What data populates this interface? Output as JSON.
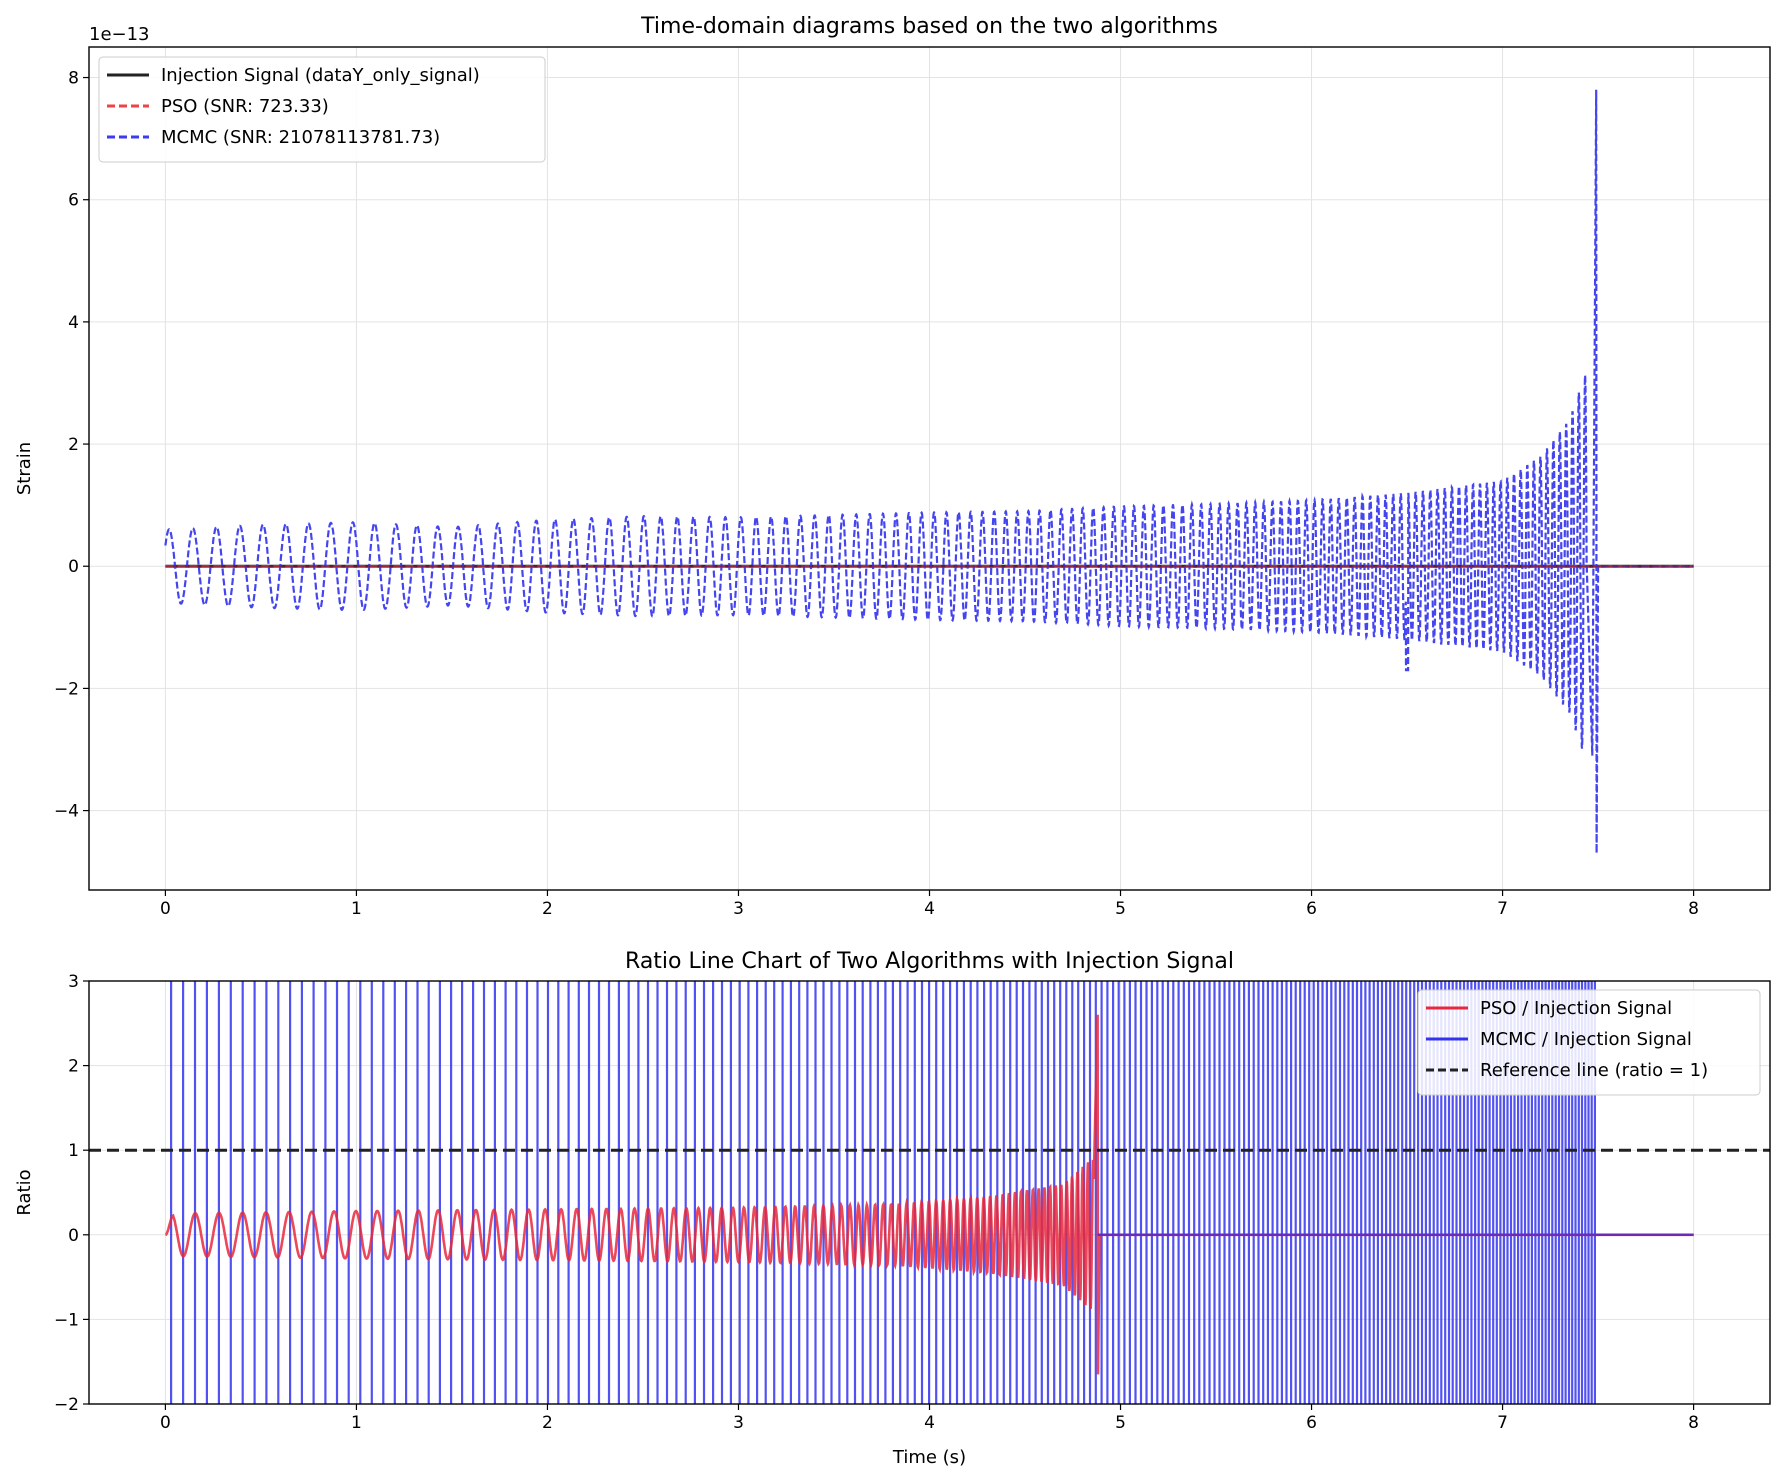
{
  "chart_data": [
    {
      "type": "line",
      "title": "Time-domain diagrams based on the two algorithms",
      "xlabel": "",
      "ylabel": "Strain",
      "offset_label": "1e−13",
      "xlim": [
        -0.4,
        8.4
      ],
      "ylim": [
        -5.3,
        8.5
      ],
      "x_ticks": [
        0,
        1,
        2,
        3,
        4,
        5,
        6,
        7,
        8
      ],
      "x_tick_labels": [
        "0",
        "1",
        "2",
        "3",
        "4",
        "5",
        "6",
        "7",
        "8"
      ],
      "y_ticks": [
        -4,
        -2,
        0,
        2,
        4,
        6,
        8
      ],
      "y_tick_labels": [
        "−4",
        "−2",
        "0",
        "2",
        "4",
        "6",
        "8"
      ],
      "grid": true,
      "legend_position": "upper-left",
      "series": [
        {
          "name": "Injection Signal (dataY_only_signal)",
          "color": "#222222",
          "style": "solid",
          "description": "flat at ~0 across 0–8 s",
          "points": [
            [
              0,
              0
            ],
            [
              8,
              0
            ]
          ]
        },
        {
          "name": "PSO (SNR: 723.33)",
          "color": "#ef4444",
          "style": "dashed",
          "description": "near zero across 0–8 s",
          "points": [
            [
              0,
              0
            ],
            [
              8,
              0
            ]
          ]
        },
        {
          "name": "MCMC (SNR: 21078113781.73)",
          "color": "#3b3bef",
          "style": "dashed",
          "description": "oscillating chirp, frequency rising from ~8 Hz to ~30 Hz, amplitude growing toward merger near t≈7.5 s, then zero",
          "envelope": [
            {
              "t": 0.0,
              "amp": 0.6
            },
            {
              "t": 0.5,
              "amp": 0.68
            },
            {
              "t": 1.0,
              "amp": 0.72
            },
            {
              "t": 1.5,
              "amp": 0.64
            },
            {
              "t": 2.0,
              "amp": 0.76
            },
            {
              "t": 2.5,
              "amp": 0.82
            },
            {
              "t": 3.0,
              "amp": 0.8
            },
            {
              "t": 3.5,
              "amp": 0.84
            },
            {
              "t": 4.0,
              "amp": 0.88
            },
            {
              "t": 4.5,
              "amp": 0.9
            },
            {
              "t": 5.0,
              "amp": 0.98
            },
            {
              "t": 5.5,
              "amp": 1.02
            },
            {
              "t": 6.0,
              "amp": 1.08
            },
            {
              "t": 6.5,
              "amp": 1.2
            },
            {
              "t": 7.0,
              "amp": 1.4
            },
            {
              "t": 7.2,
              "amp": 1.8
            },
            {
              "t": 7.35,
              "amp": 2.4
            },
            {
              "t": 7.45,
              "amp": 3.3
            },
            {
              "t": 7.49,
              "amp": 7.8
            }
          ],
          "features": {
            "spike_max": {
              "t": 7.49,
              "value": 7.8
            },
            "spike_min": {
              "t": 7.49,
              "value": -4.7
            },
            "glitch": {
              "t": 6.5,
              "value": -1.7
            },
            "end_time": 7.5
          }
        }
      ]
    },
    {
      "type": "line",
      "title": "Ratio Line Chart of Two Algorithms with Injection Signal",
      "xlabel": "Time (s)",
      "ylabel": "Ratio",
      "xlim": [
        -0.4,
        8.4
      ],
      "ylim": [
        -2,
        3
      ],
      "x_ticks": [
        0,
        1,
        2,
        3,
        4,
        5,
        6,
        7,
        8
      ],
      "x_tick_labels": [
        "0",
        "1",
        "2",
        "3",
        "4",
        "5",
        "6",
        "7",
        "8"
      ],
      "y_ticks": [
        -2,
        -1,
        0,
        1,
        2,
        3
      ],
      "y_tick_labels": [
        "−2",
        "−1",
        "0",
        "1",
        "2",
        "3"
      ],
      "grid": true,
      "legend_position": "upper-right",
      "series": [
        {
          "name": "PSO / Injection Signal",
          "color": "#e8283c",
          "style": "solid",
          "description": "oscillation ~±0.3 growing to ~±0.6 before t≈4.88 s, spike to 2.6 / −1.65, then 0 until 8 s",
          "envelope": [
            {
              "t": 0.0,
              "amp": 0.25
            },
            {
              "t": 1.0,
              "amp": 0.28
            },
            {
              "t": 2.0,
              "amp": 0.3
            },
            {
              "t": 3.0,
              "amp": 0.32
            },
            {
              "t": 3.8,
              "amp": 0.36
            },
            {
              "t": 4.3,
              "amp": 0.45
            },
            {
              "t": 4.7,
              "amp": 0.6
            },
            {
              "t": 4.85,
              "amp": 0.9
            }
          ],
          "features": {
            "spike_max": {
              "t": 4.88,
              "value": 2.6
            },
            "spike_min": {
              "t": 4.88,
              "value": -1.65
            },
            "end_time": 4.88
          }
        },
        {
          "name": "MCMC / Injection Signal",
          "color": "#3434f0",
          "style": "solid",
          "description": "dense vertical lines spanning full range from ~0.03 s to ~7.5 s, then 0 until 8 s",
          "features": {
            "start_time": 0.03,
            "end_time": 7.5
          }
        },
        {
          "name": "Reference line (ratio = 1)",
          "color": "#222222",
          "style": "dashed",
          "points": [
            [
              -0.4,
              1
            ],
            [
              8.4,
              1
            ]
          ]
        }
      ]
    }
  ]
}
